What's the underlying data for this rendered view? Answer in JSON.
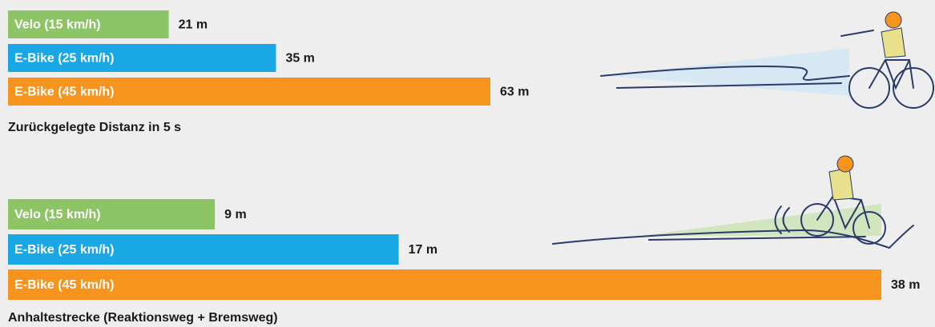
{
  "chart_data": [
    {
      "type": "bar",
      "orientation": "horizontal",
      "title": "Zurückgelegte Distanz in 5 s",
      "categories": [
        "Velo (15 km/h)",
        "E-Bike (25 km/h)",
        "E-Bike (45 km/h)"
      ],
      "values": [
        21,
        35,
        63
      ],
      "value_labels": [
        "21 m",
        "35 m",
        "63 m"
      ],
      "colors": [
        "#8dc465",
        "#1aa7e5",
        "#f7941e"
      ]
    },
    {
      "type": "bar",
      "orientation": "horizontal",
      "title": "Anhaltestrecke (Reaktionsweg + Bremsweg)",
      "categories": [
        "Velo (15 km/h)",
        "E-Bike (25 km/h)",
        "E-Bike (45 km/h)"
      ],
      "values": [
        9,
        17,
        38
      ],
      "value_labels": [
        "9 m",
        "17 m",
        "38 m"
      ],
      "colors": [
        "#8dc465",
        "#1aa7e5",
        "#f7941e"
      ]
    }
  ]
}
